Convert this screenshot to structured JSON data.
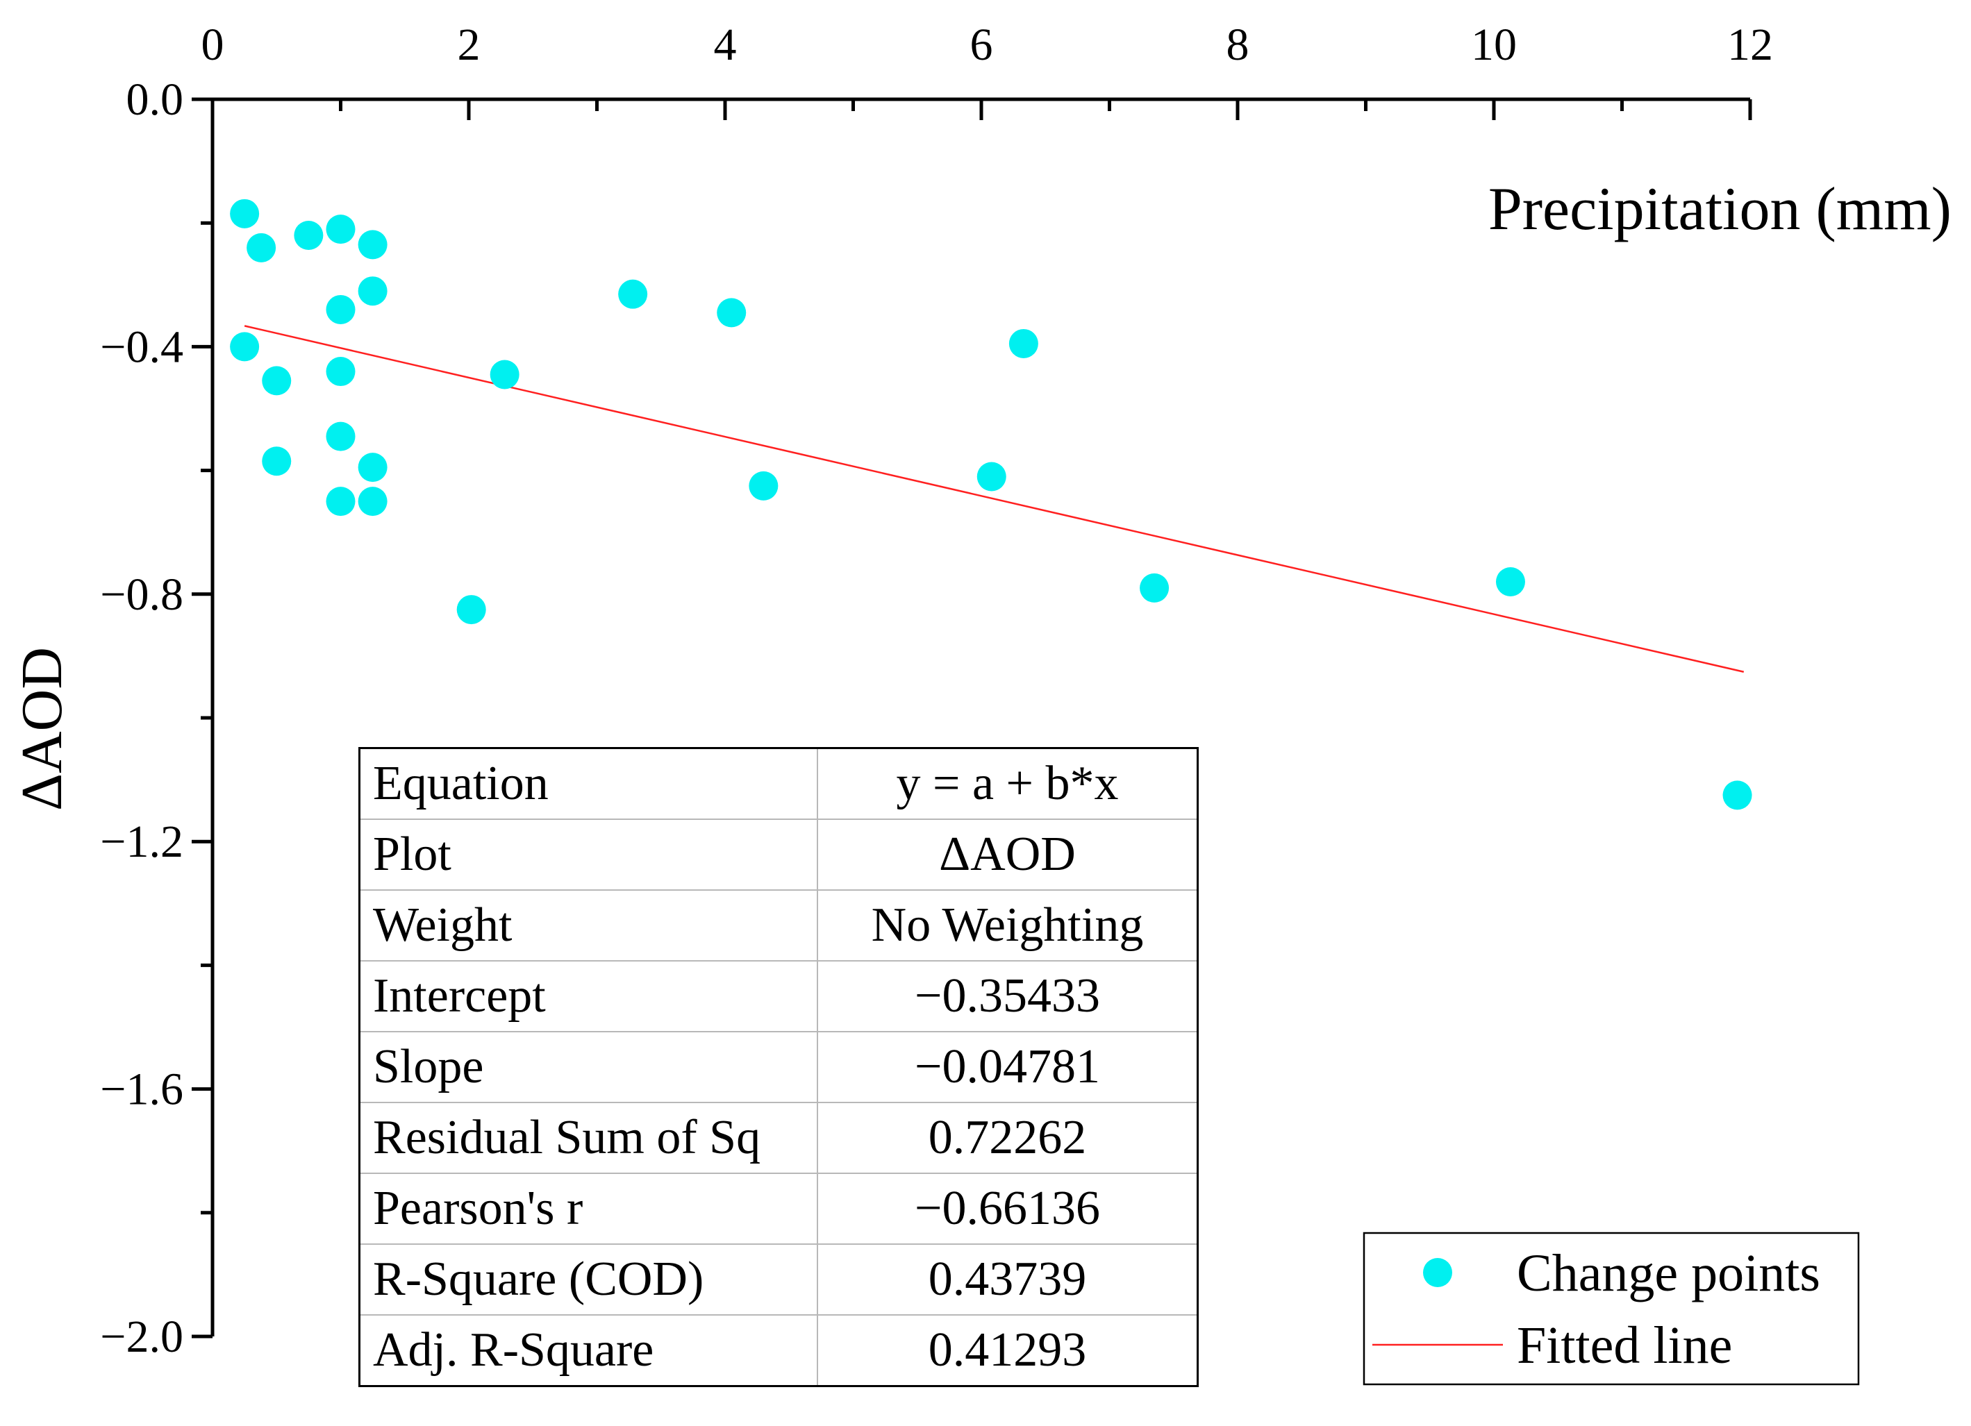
{
  "chart_data": {
    "type": "scatter",
    "title": "",
    "xlabel": "Precipitation (mm)",
    "ylabel": "ΔAOD",
    "x_position": "top",
    "xlim": [
      0,
      12
    ],
    "ylim": [
      -2.0,
      0.0
    ],
    "x_ticks": [
      0,
      2,
      4,
      6,
      8,
      10,
      12
    ],
    "y_ticks": [
      0.0,
      -0.4,
      -0.8,
      -1.2,
      -1.6,
      -2.0
    ],
    "x_tick_labels": [
      "0",
      "2",
      "4",
      "6",
      "8",
      "10",
      "12"
    ],
    "y_tick_labels": [
      "0.0",
      "−0.4",
      "−0.8",
      "−1.2",
      "−1.6",
      "−2.0"
    ],
    "series": [
      {
        "name": "Change points",
        "kind": "scatter",
        "color": "#00f0f0",
        "points": [
          [
            0.25,
            -0.185
          ],
          [
            0.38,
            -0.24
          ],
          [
            0.75,
            -0.22
          ],
          [
            1.0,
            -0.21
          ],
          [
            1.25,
            -0.235
          ],
          [
            1.25,
            -0.31
          ],
          [
            1.0,
            -0.34
          ],
          [
            0.25,
            -0.4
          ],
          [
            1.0,
            -0.44
          ],
          [
            0.5,
            -0.455
          ],
          [
            1.0,
            -0.545
          ],
          [
            0.5,
            -0.585
          ],
          [
            1.25,
            -0.595
          ],
          [
            1.0,
            -0.65
          ],
          [
            1.25,
            -0.65
          ],
          [
            2.02,
            -0.825
          ],
          [
            2.28,
            -0.445
          ],
          [
            3.28,
            -0.315
          ],
          [
            4.05,
            -0.345
          ],
          [
            4.3,
            -0.625
          ],
          [
            6.08,
            -0.61
          ],
          [
            6.33,
            -0.395
          ],
          [
            7.35,
            -0.79
          ],
          [
            10.13,
            -0.78
          ],
          [
            11.9,
            -1.125
          ]
        ]
      },
      {
        "name": "Fitted line",
        "kind": "line",
        "color": "#ff2020",
        "intercept": -0.35433,
        "slope": -0.04781,
        "x_range": [
          0.25,
          11.95
        ]
      }
    ],
    "legend": {
      "position": "bottom-right",
      "entries": [
        "Change points",
        "Fitted line"
      ]
    },
    "stats_table": {
      "position": "bottom-center",
      "rows": [
        {
          "label": "Equation",
          "value": "y = a + b*x"
        },
        {
          "label": "Plot",
          "value": "ΔAOD"
        },
        {
          "label": "Weight",
          "value": "No Weighting"
        },
        {
          "label": "Intercept",
          "value": "−0.35433"
        },
        {
          "label": "Slope",
          "value": "−0.04781"
        },
        {
          "label": "Residual Sum of Sq",
          "value": "0.72262"
        },
        {
          "label": "Pearson's r",
          "value": "−0.66136"
        },
        {
          "label": "R-Square (COD)",
          "value": "0.43739"
        },
        {
          "label": "Adj. R-Square",
          "value": "0.41293"
        }
      ]
    }
  }
}
